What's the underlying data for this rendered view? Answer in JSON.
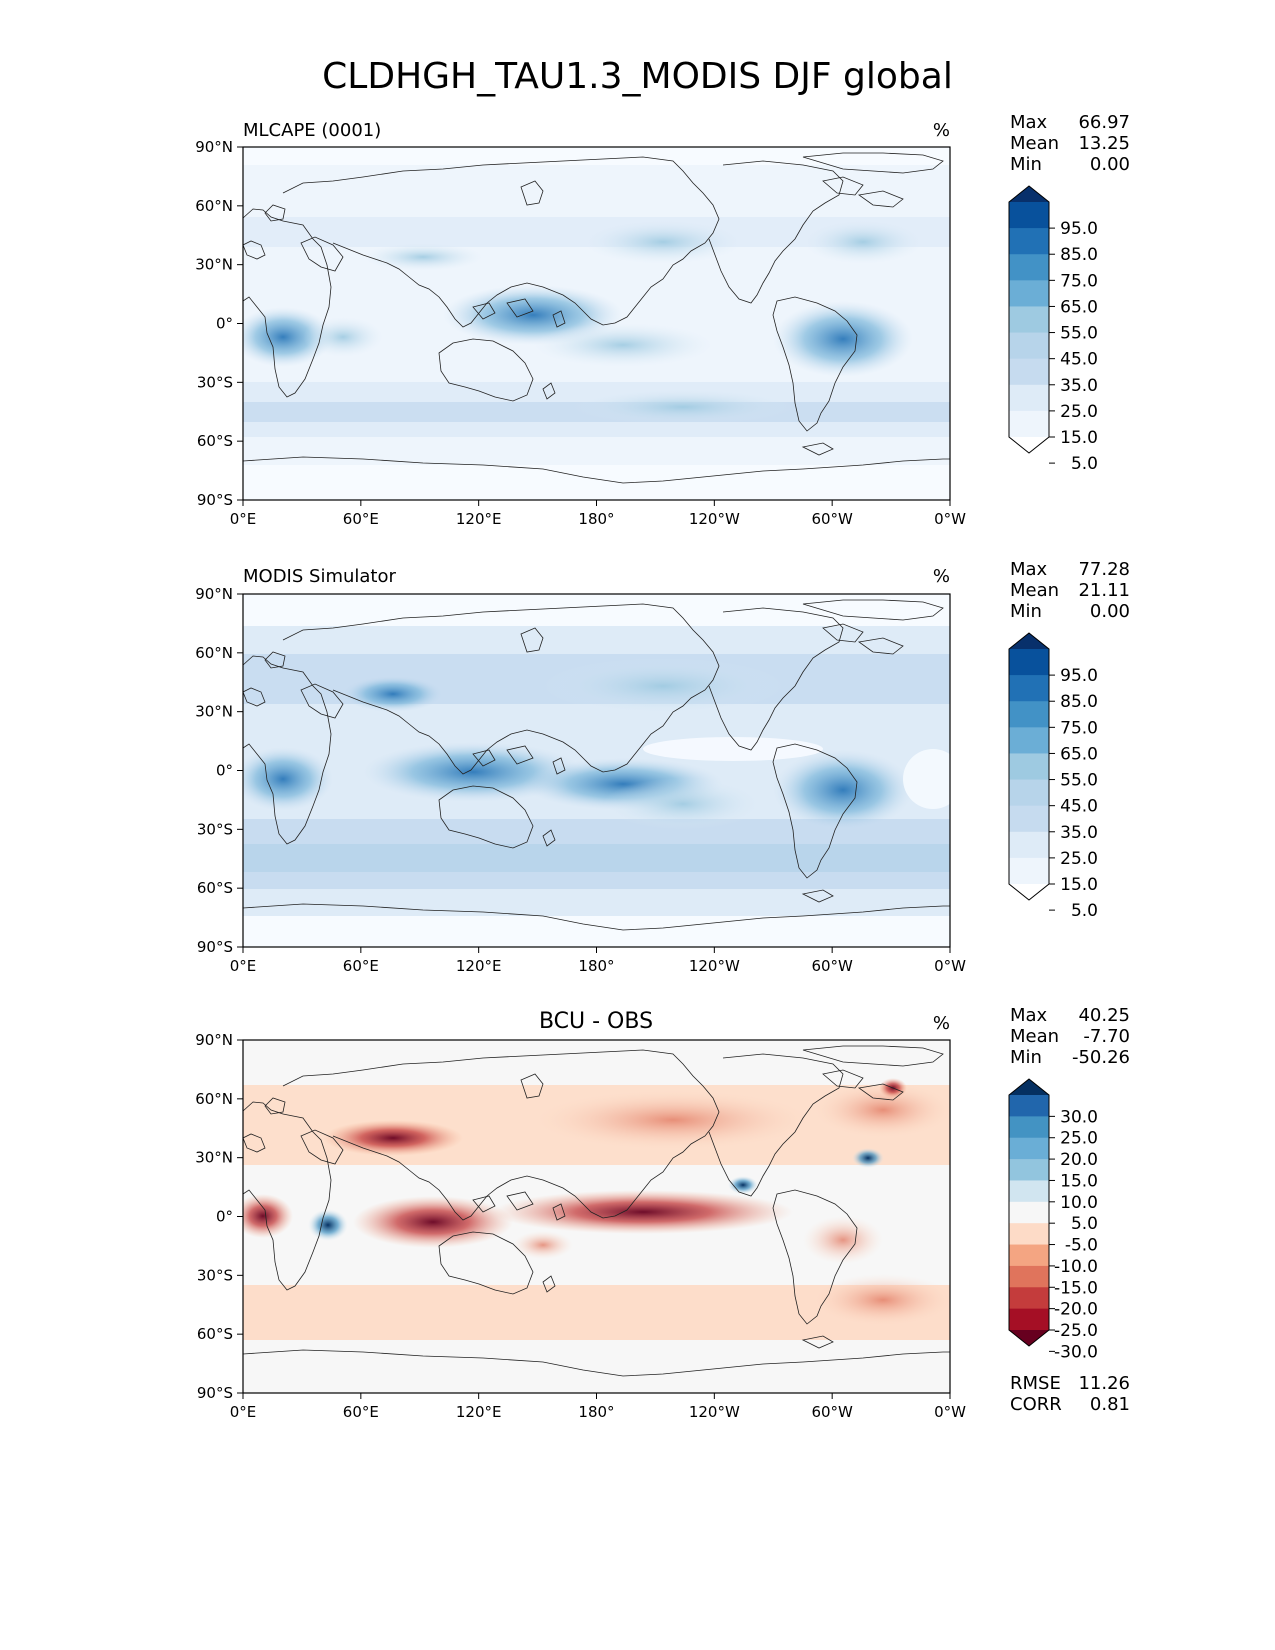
{
  "title": "CLDHGH_TAU1.3_MODIS DJF global",
  "axes": {
    "lat_ticks": [
      "90°N",
      "60°N",
      "30°N",
      "0°",
      "30°S",
      "60°S",
      "90°S"
    ],
    "lon_ticks": [
      "0°E",
      "60°E",
      "120°E",
      "180°",
      "120°W",
      "60°W",
      "0°W"
    ]
  },
  "panels": [
    {
      "name": "test",
      "title_left": "MLCAPE (0001)",
      "title_center": "",
      "units": "%",
      "stats": [
        {
          "label": "Max",
          "value": "66.97"
        },
        {
          "label": "Mean",
          "value": "13.25"
        },
        {
          "label": "Min",
          "value": "0.00"
        }
      ],
      "colorbar": {
        "levels": [
          "95.0",
          "85.0",
          "75.0",
          "65.0",
          "55.0",
          "45.0",
          "35.0",
          "25.0",
          "15.0",
          "5.0"
        ],
        "colors": [
          "#08306b",
          "#08519c",
          "#2171b5",
          "#4292c6",
          "#6baed6",
          "#9ecae1",
          "#b7d4ea",
          "#c6dbef",
          "#deebf7",
          "#eef5fc",
          "#ffffff"
        ]
      }
    },
    {
      "name": "reference",
      "title_left": "MODIS Simulator",
      "title_center": "",
      "units": "%",
      "stats": [
        {
          "label": "Max",
          "value": "77.28"
        },
        {
          "label": "Mean",
          "value": "21.11"
        },
        {
          "label": "Min",
          "value": "0.00"
        }
      ],
      "colorbar": {
        "levels": [
          "95.0",
          "85.0",
          "75.0",
          "65.0",
          "55.0",
          "45.0",
          "35.0",
          "25.0",
          "15.0",
          "5.0"
        ],
        "colors": [
          "#08306b",
          "#08519c",
          "#2171b5",
          "#4292c6",
          "#6baed6",
          "#9ecae1",
          "#b7d4ea",
          "#c6dbef",
          "#deebf7",
          "#eef5fc",
          "#ffffff"
        ]
      }
    },
    {
      "name": "difference",
      "title_left": "",
      "title_center": "BCU - OBS",
      "units": "%",
      "stats": [
        {
          "label": "Max",
          "value": "40.25"
        },
        {
          "label": "Mean",
          "value": "-7.70"
        },
        {
          "label": "Min",
          "value": "-50.26"
        }
      ],
      "colorbar": {
        "levels": [
          "30.0",
          "25.0",
          "20.0",
          "15.0",
          "10.0",
          "5.0",
          "-5.0",
          "-10.0",
          "-15.0",
          "-20.0",
          "-25.0",
          "-30.0"
        ],
        "colors": [
          "#053061",
          "#2166ac",
          "#4393c3",
          "#6aaed6",
          "#92c5de",
          "#d1e5f0",
          "#f7f7f7",
          "#fddbc7",
          "#f4a582",
          "#e0745c",
          "#c43c3c",
          "#a50f25",
          "#67001f"
        ]
      },
      "metrics": [
        {
          "label": "RMSE",
          "value": "11.26"
        },
        {
          "label": "CORR",
          "value": "0.81"
        }
      ]
    }
  ]
}
